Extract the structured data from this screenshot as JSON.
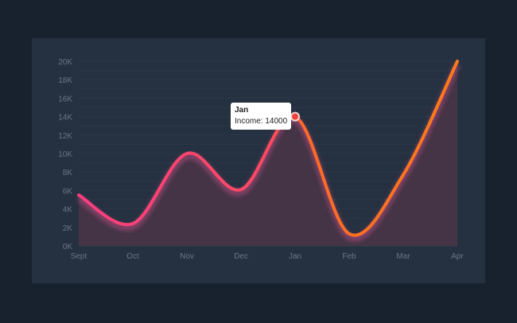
{
  "chart_data": {
    "type": "area",
    "categories": [
      "Sept",
      "Oct",
      "Nov",
      "Dec",
      "Jan",
      "Feb",
      "Mar",
      "Apr"
    ],
    "series": [
      {
        "name": "Income",
        "values": [
          5500,
          2400,
          10000,
          6100,
          14000,
          1300,
          7700,
          20000
        ]
      }
    ],
    "ylim": [
      0,
      20000
    ],
    "yticks": [
      "0K",
      "2K",
      "4K",
      "6K",
      "8K",
      "10K",
      "12K",
      "14K",
      "16K",
      "18K",
      "20K"
    ],
    "grid": true,
    "line_colors": [
      "#ff3d7f",
      "#ff7a1a"
    ],
    "fill_color": "#4a3546",
    "tooltip": {
      "title": "Jan",
      "label": "Income: 14000",
      "point_color": "#f0433a"
    }
  }
}
